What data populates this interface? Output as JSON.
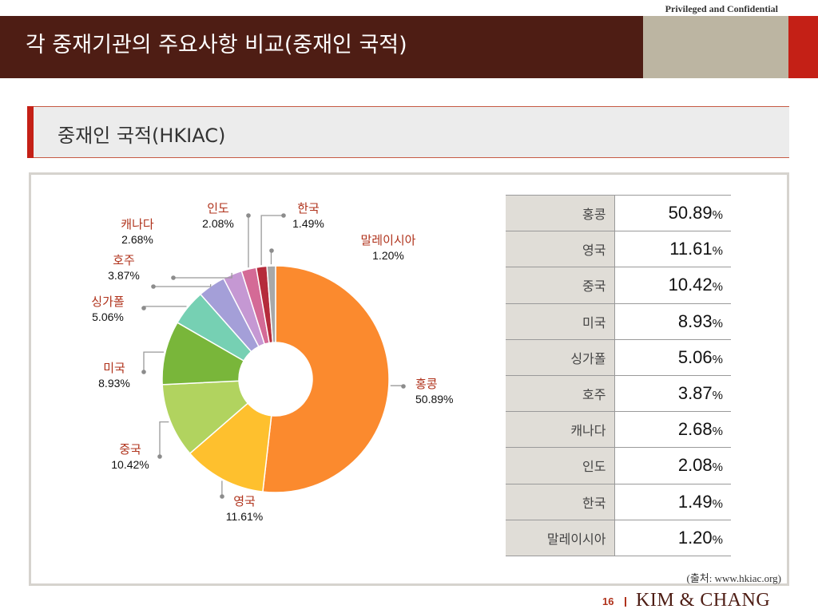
{
  "header": {
    "confidential": "Privileged and Confidential",
    "title": "각 중재기관의 주요사항 비교(중재인 국적)"
  },
  "section": {
    "title": "중재인 국적(HKIAC)"
  },
  "colors": {
    "header_bg": "#4e1d14",
    "accent_red": "#c42016",
    "header_gray": "#bcb5a2",
    "label_red": "#b0331c"
  },
  "chart_data": {
    "type": "pie",
    "donut": true,
    "categories": [
      "홍콩",
      "영국",
      "중국",
      "미국",
      "싱가폴",
      "호주",
      "캐나다",
      "인도",
      "한국",
      "말레이시아"
    ],
    "values": [
      50.89,
      11.61,
      10.42,
      8.93,
      5.06,
      3.87,
      2.68,
      2.08,
      1.49,
      1.2
    ],
    "value_labels": [
      "50.89%",
      "11.61%",
      "10.42%",
      "8.93%",
      "5.06%",
      "3.87%",
      "2.68%",
      "2.08%",
      "1.49%",
      "1.20%"
    ],
    "colors": [
      "#fb8a2e",
      "#fec02e",
      "#b1d35f",
      "#79b63a",
      "#76d0b3",
      "#a49fd8",
      "#c598d3",
      "#d46a96",
      "#b52b3b",
      "#a8a8a8"
    ],
    "unit": "%"
  },
  "table": {
    "rows": [
      {
        "country": "홍콩",
        "value": "50.89",
        "pct": "%"
      },
      {
        "country": "영국",
        "value": "11.61",
        "pct": "%"
      },
      {
        "country": "중국",
        "value": "10.42",
        "pct": "%"
      },
      {
        "country": "미국",
        "value": "8.93",
        "pct": "%"
      },
      {
        "country": "싱가폴",
        "value": "5.06",
        "pct": "%"
      },
      {
        "country": "호주",
        "value": "3.87",
        "pct": "%"
      },
      {
        "country": "캐나다",
        "value": "2.68",
        "pct": "%"
      },
      {
        "country": "인도",
        "value": "2.08",
        "pct": "%"
      },
      {
        "country": "한국",
        "value": "1.49",
        "pct": "%"
      },
      {
        "country": "말레이시아",
        "value": "1.20",
        "pct": "%"
      }
    ]
  },
  "footer": {
    "source": "(출처: www.hkiac.org)",
    "page_number": "16",
    "brand": "KIM & CHANG"
  }
}
